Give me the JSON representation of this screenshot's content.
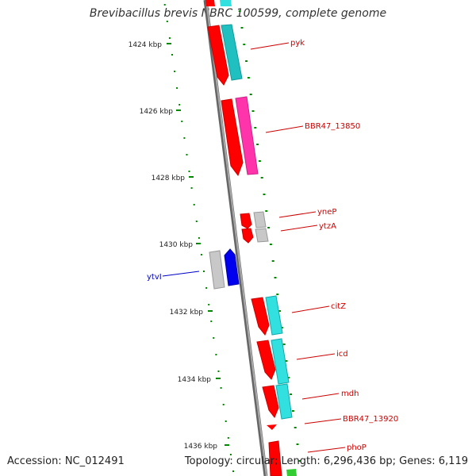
{
  "title": "Brevibacillus brevis NBRC 100599, complete genome",
  "footer": {
    "accession": "Accession: NC_012491",
    "summary": "Topology: circular; Length: 6,296,436 bp; Genes: 6,119"
  },
  "ruler_labels": [
    "1424 kbp",
    "1426 kbp",
    "1428 kbp",
    "1430 kbp",
    "1432 kbp",
    "1434 kbp",
    "1436 kbp"
  ],
  "gene_labels": [
    {
      "text": "pyk",
      "color": "#cc0000"
    },
    {
      "text": "BBR47_13850",
      "color": "#cc0000"
    },
    {
      "text": "yneP",
      "color": "#cc0000"
    },
    {
      "text": "ytzA",
      "color": "#cc0000"
    },
    {
      "text": "ytvI",
      "color": "#0000cc"
    },
    {
      "text": "citZ",
      "color": "#cc0000"
    },
    {
      "text": "icd",
      "color": "#cc0000"
    },
    {
      "text": "mdh",
      "color": "#cc0000"
    },
    {
      "text": "BBR47_13920",
      "color": "#cc0000"
    },
    {
      "text": "phoP",
      "color": "#cc0000"
    }
  ],
  "colors": {
    "backbone": "#888888",
    "ruler": "#008800",
    "gene": "#ff0000",
    "gene_reverse": "#0000ee",
    "cds_cyan": "#33e0e0",
    "cds_magenta": "#ff33aa",
    "cds_grey": "#c8c8c8",
    "cds_green": "#33cc33"
  }
}
